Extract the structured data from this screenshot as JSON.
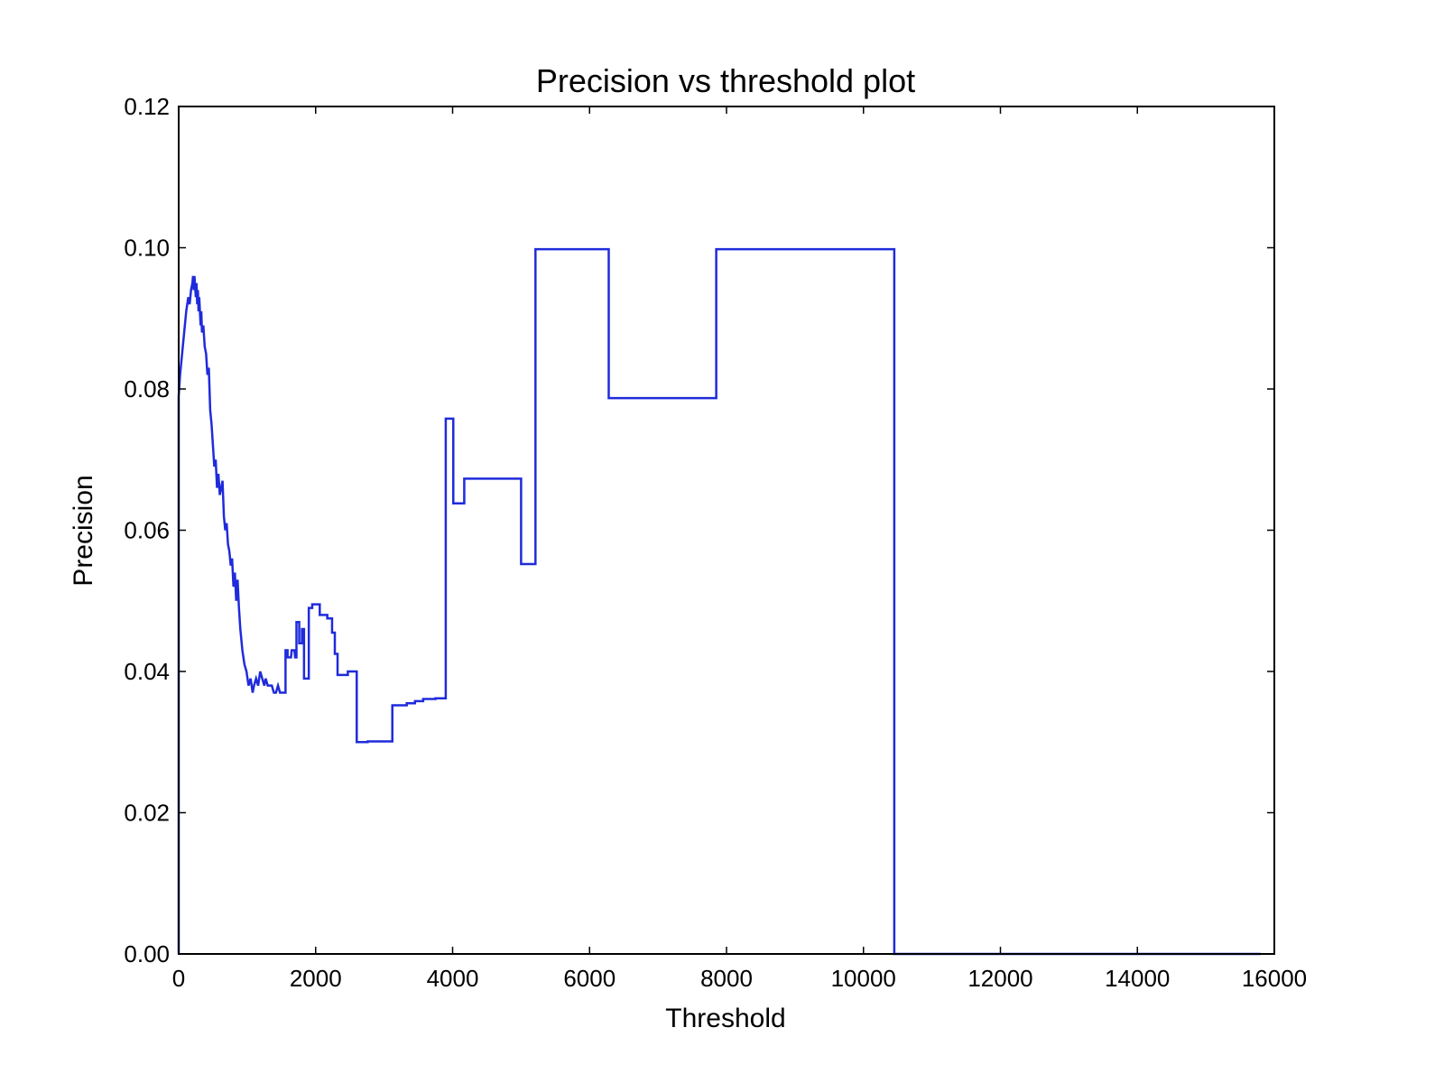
{
  "chart_data": {
    "type": "line",
    "title": "Precision vs threshold plot",
    "xlabel": "Threshold",
    "ylabel": "Precision",
    "xlim": [
      0,
      16000
    ],
    "ylim": [
      0,
      0.12
    ],
    "xticks": [
      0,
      2000,
      4000,
      6000,
      8000,
      10000,
      12000,
      14000,
      16000
    ],
    "yticks": [
      0.0,
      0.02,
      0.04,
      0.06,
      0.08,
      0.1,
      0.12
    ],
    "xtick_labels": [
      "0",
      "2000",
      "4000",
      "6000",
      "8000",
      "10000",
      "12000",
      "14000",
      "16000"
    ],
    "ytick_labels": [
      "0.00",
      "0.02",
      "0.04",
      "0.06",
      "0.08",
      "0.10",
      "0.12"
    ],
    "grid": false,
    "line_color": "#1f2bdb",
    "series": [
      {
        "x": [
          0,
          0,
          20,
          50,
          80,
          110,
          140,
          160,
          180,
          200,
          210,
          220,
          230,
          250,
          260,
          270,
          280,
          290,
          300,
          320,
          330,
          340,
          360,
          380,
          400,
          420,
          440,
          460,
          480,
          500,
          520,
          540,
          560,
          580,
          600,
          620,
          640,
          660,
          680,
          700,
          720,
          740,
          760,
          780,
          800,
          820,
          840,
          860,
          880,
          900,
          930,
          960,
          990,
          1020,
          1050,
          1080,
          1100,
          1130,
          1160,
          1190,
          1220,
          1250,
          1270,
          1300,
          1330,
          1360,
          1390,
          1420,
          1450,
          1480,
          1500,
          1520,
          1550,
          1560,
          1560,
          1590,
          1590,
          1640,
          1650,
          1690,
          1700,
          1720,
          1720,
          1760,
          1760,
          1800,
          1800,
          1830,
          1830,
          1870,
          1870,
          1900,
          1900,
          1950,
          1950,
          2000,
          2000,
          2060,
          2060,
          2100,
          2100,
          2170,
          2170,
          2240,
          2240,
          2280,
          2280,
          2320,
          2320,
          2380,
          2380,
          2470,
          2470,
          2600,
          2600,
          2760,
          2760,
          3120,
          3120,
          3330,
          3330,
          3450,
          3450,
          3570,
          3570,
          3750,
          3750,
          3900,
          3900,
          4010,
          4010,
          4040,
          4040,
          4170,
          4170,
          5000,
          5000,
          5210,
          5210,
          6280,
          6280,
          7850,
          7850,
          10450,
          10450,
          15800
        ],
        "y": [
          0.0,
          0.079,
          0.082,
          0.085,
          0.088,
          0.091,
          0.093,
          0.092,
          0.094,
          0.095,
          0.096,
          0.094,
          0.096,
          0.093,
          0.095,
          0.092,
          0.094,
          0.091,
          0.093,
          0.089,
          0.091,
          0.088,
          0.089,
          0.086,
          0.085,
          0.082,
          0.083,
          0.077,
          0.075,
          0.072,
          0.069,
          0.07,
          0.066,
          0.068,
          0.065,
          0.066,
          0.067,
          0.062,
          0.06,
          0.061,
          0.058,
          0.057,
          0.055,
          0.056,
          0.052,
          0.054,
          0.05,
          0.053,
          0.049,
          0.046,
          0.043,
          0.041,
          0.04,
          0.038,
          0.039,
          0.037,
          0.038,
          0.039,
          0.038,
          0.04,
          0.039,
          0.038,
          0.039,
          0.038,
          0.038,
          0.038,
          0.037,
          0.037,
          0.038,
          0.037,
          0.037,
          0.037,
          0.037,
          0.037,
          0.043,
          0.043,
          0.042,
          0.042,
          0.043,
          0.043,
          0.042,
          0.042,
          0.047,
          0.047,
          0.044,
          0.044,
          0.046,
          0.046,
          0.039,
          0.039,
          0.039,
          0.039,
          0.049,
          0.049,
          0.0495,
          0.0495,
          0.0495,
          0.0495,
          0.048,
          0.048,
          0.048,
          0.048,
          0.0475,
          0.0475,
          0.0455,
          0.0455,
          0.0425,
          0.0425,
          0.0395,
          0.0395,
          0.0395,
          0.0395,
          0.04,
          0.04,
          0.03,
          0.03,
          0.0301,
          0.0301,
          0.0352,
          0.0352,
          0.0355,
          0.0355,
          0.0358,
          0.0358,
          0.0361,
          0.0361,
          0.0362,
          0.0362,
          0.0758,
          0.0758,
          0.0638,
          0.0638,
          0.0638,
          0.0638,
          0.0673,
          0.0673,
          0.0552,
          0.0552,
          0.0998,
          0.0998,
          0.0787,
          0.0787,
          0.0998,
          0.0998,
          0.0,
          0.0
        ]
      }
    ]
  }
}
